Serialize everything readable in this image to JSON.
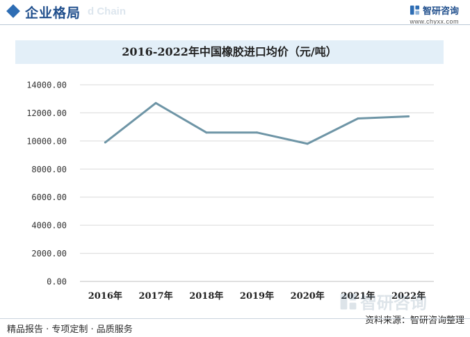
{
  "header": {
    "title": "企业格局",
    "watermark": "d Chain"
  },
  "brand": {
    "name": "智研咨询",
    "url": "www.chyxx.com",
    "accent": "#2e6db4"
  },
  "footer": {
    "left": "精品报告 · 专项定制 · 品质服务",
    "source": "资料来源：智研咨询整理",
    "watermark_name": "智研咨询"
  },
  "colors": {
    "line": "#6e95a6",
    "grid": "#d9d9d9",
    "title_band": "#e3eff8"
  },
  "chart_data": {
    "type": "line",
    "title": "2016-2022年中国橡胶进口均价（元/吨）",
    "xlabel": "",
    "ylabel": "",
    "categories": [
      "2016年",
      "2017年",
      "2018年",
      "2019年",
      "2020年",
      "2021年",
      "2022年"
    ],
    "series": [
      {
        "values": [
          9900,
          12700,
          10600,
          10600,
          9800,
          11600,
          11750
        ]
      }
    ],
    "ylim": [
      0,
      14000
    ],
    "yticks": [
      "0.00",
      "2000.00",
      "4000.00",
      "6000.00",
      "8000.00",
      "10000.00",
      "12000.00",
      "14000.00"
    ],
    "ytick_values": [
      0,
      2000,
      4000,
      6000,
      8000,
      10000,
      12000,
      14000
    ],
    "grid": true,
    "legend": "none"
  }
}
